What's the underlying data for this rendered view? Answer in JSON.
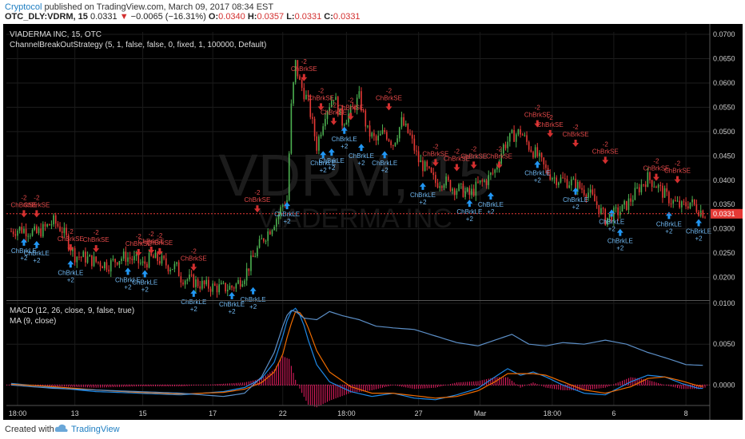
{
  "header": {
    "author": "Cryptocol",
    "published": "published on TradingView.com, March 09, 2017 08:34 EST",
    "symbol": "OTC_DLY:VDRM, 15",
    "last": "0.0331",
    "change": "−0.0065 (−16.31%)",
    "o_label": "O:",
    "o": "0.0340",
    "h_label": "H:",
    "h": "0.0357",
    "l_label": "L:",
    "l": "0.0331",
    "c_label": "C:",
    "c": "0.0331"
  },
  "footer": {
    "created": "Created with",
    "brand": "TradingView"
  },
  "colors": {
    "up": "#4caf50",
    "down": "#e53935",
    "macd": "#1e88e5",
    "signal": "#ef6c00",
    "hist": "#e91e63",
    "ma": "#5c8fc7",
    "entry": "#2196f3",
    "exit": "#d32f2f"
  },
  "chart_data": [
    {
      "type": "candlestick",
      "title": "VIADERMA INC, 15, OTC",
      "watermark": "VDRM, 15",
      "watermark_sub": "VIADERMA INC",
      "indicator": "ChannelBreakOutStrategy (5, 1, false, false, 0, fixed, 1, 100000, Default)",
      "ylim": [
        0.0155,
        0.0705
      ],
      "y_ticks": [
        "0.0700",
        "0.0650",
        "0.0600",
        "0.0550",
        "0.0500",
        "0.0450",
        "0.0400",
        "0.0350",
        "0.0300",
        "0.0250",
        "0.0200"
      ],
      "last_price": "0.0331",
      "x_ticks": [
        "18:00",
        "13",
        "15",
        "17",
        "22",
        "18:00",
        "27",
        "Mar",
        "18:00",
        "6",
        "8"
      ],
      "close_path": [
        [
          0,
          0.0295
        ],
        [
          4,
          0.03
        ],
        [
          8,
          0.0296
        ],
        [
          12,
          0.029
        ],
        [
          16,
          0.0302
        ],
        [
          20,
          0.0315
        ],
        [
          24,
          0.0298
        ],
        [
          28,
          0.0262
        ],
        [
          30,
          0.0245
        ],
        [
          34,
          0.0242
        ],
        [
          38,
          0.0235
        ],
        [
          42,
          0.023
        ],
        [
          46,
          0.0226
        ],
        [
          50,
          0.0238
        ],
        [
          54,
          0.0243
        ],
        [
          58,
          0.0236
        ],
        [
          62,
          0.0226
        ],
        [
          66,
          0.024
        ],
        [
          70,
          0.0236
        ],
        [
          74,
          0.0224
        ],
        [
          78,
          0.022
        ],
        [
          80,
          0.02
        ],
        [
          84,
          0.0195
        ],
        [
          88,
          0.0188
        ],
        [
          92,
          0.0182
        ],
        [
          96,
          0.018
        ],
        [
          100,
          0.0178
        ],
        [
          104,
          0.018
        ],
        [
          106,
          0.0185
        ],
        [
          110,
          0.0205
        ],
        [
          114,
          0.024
        ],
        [
          118,
          0.0275
        ],
        [
          122,
          0.03
        ],
        [
          126,
          0.033
        ],
        [
          128,
          0.035
        ],
        [
          130,
          0.036
        ],
        [
          132,
          0.055
        ],
        [
          134,
          0.064
        ],
        [
          136,
          0.06
        ],
        [
          140,
          0.056
        ],
        [
          144,
          0.047
        ],
        [
          148,
          0.054
        ],
        [
          152,
          0.0575
        ],
        [
          156,
          0.052
        ],
        [
          160,
          0.054
        ],
        [
          164,
          0.057
        ],
        [
          168,
          0.05
        ],
        [
          172,
          0.048
        ],
        [
          176,
          0.05
        ],
        [
          180,
          0.0475
        ],
        [
          184,
          0.052
        ],
        [
          188,
          0.049
        ],
        [
          192,
          0.044
        ],
        [
          196,
          0.042
        ],
        [
          200,
          0.0395
        ],
        [
          204,
          0.04
        ],
        [
          208,
          0.0385
        ],
        [
          212,
          0.038
        ],
        [
          216,
          0.037
        ],
        [
          220,
          0.039
        ],
        [
          224,
          0.04
        ],
        [
          228,
          0.042
        ],
        [
          232,
          0.047
        ],
        [
          236,
          0.049
        ],
        [
          240,
          0.05
        ],
        [
          244,
          0.047
        ],
        [
          248,
          0.045
        ],
        [
          252,
          0.042
        ],
        [
          256,
          0.0405
        ],
        [
          260,
          0.04
        ],
        [
          264,
          0.0395
        ],
        [
          268,
          0.0385
        ],
        [
          272,
          0.0375
        ],
        [
          276,
          0.035
        ],
        [
          280,
          0.032
        ],
        [
          284,
          0.033
        ],
        [
          288,
          0.034
        ],
        [
          292,
          0.036
        ],
        [
          296,
          0.0385
        ],
        [
          300,
          0.0405
        ],
        [
          304,
          0.039
        ],
        [
          308,
          0.037
        ],
        [
          312,
          0.0355
        ],
        [
          316,
          0.0345
        ],
        [
          320,
          0.0355
        ],
        [
          324,
          0.034
        ],
        [
          327,
          0.0331
        ]
      ],
      "n_bars": 328,
      "entries": [
        [
          6,
          0.028
        ],
        [
          12,
          0.0275
        ],
        [
          28,
          0.0235
        ],
        [
          55,
          0.022
        ],
        [
          63,
          0.0215
        ],
        [
          86,
          0.0175
        ],
        [
          104,
          0.017
        ],
        [
          114,
          0.018
        ],
        [
          130,
          0.0355
        ],
        [
          147,
          0.046
        ],
        [
          151,
          0.0465
        ],
        [
          157,
          0.051
        ],
        [
          165,
          0.0475
        ],
        [
          176,
          0.046
        ],
        [
          194,
          0.0395
        ],
        [
          216,
          0.036
        ],
        [
          226,
          0.0375
        ],
        [
          248,
          0.044
        ],
        [
          266,
          0.0385
        ],
        [
          283,
          0.034
        ],
        [
          287,
          0.03
        ],
        [
          310,
          0.0335
        ],
        [
          324,
          0.032
        ]
      ],
      "exits": [
        [
          6,
          0.034
        ],
        [
          12,
          0.034
        ],
        [
          28,
          0.027
        ],
        [
          40,
          0.0268
        ],
        [
          60,
          0.026
        ],
        [
          66,
          0.0265
        ],
        [
          70,
          0.0262
        ],
        [
          86,
          0.023
        ],
        [
          116,
          0.035
        ],
        [
          138,
          0.062
        ],
        [
          146,
          0.056
        ],
        [
          152,
          0.053
        ],
        [
          160,
          0.054
        ],
        [
          178,
          0.056
        ],
        [
          200,
          0.0445
        ],
        [
          210,
          0.0435
        ],
        [
          218,
          0.044
        ],
        [
          230,
          0.044
        ],
        [
          248,
          0.0525
        ],
        [
          254,
          0.0505
        ],
        [
          266,
          0.0485
        ],
        [
          280,
          0.045
        ],
        [
          304,
          0.0415
        ],
        [
          314,
          0.041
        ]
      ],
      "entry_label": "ChBrkLE",
      "exit_label": "ChBrkSE",
      "entry_qty": "+2",
      "exit_qty": "-2"
    },
    {
      "type": "line",
      "title": "MACD (12, 26, close, 9, false, true)",
      "ma_title": "MA (9, close)",
      "ylim": [
        -0.0025,
        0.0102
      ],
      "y_ticks": [
        "0.0100",
        "0.0050",
        "0.0000"
      ],
      "series": [
        {
          "name": "MACD",
          "points": [
            [
              0,
              0.0002
            ],
            [
              20,
              -0.0003
            ],
            [
              40,
              -0.0008
            ],
            [
              60,
              -0.001
            ],
            [
              80,
              -0.0012
            ],
            [
              100,
              -0.0008
            ],
            [
              110,
              -0.0003
            ],
            [
              118,
              0.0008
            ],
            [
              124,
              0.0028
            ],
            [
              128,
              0.006
            ],
            [
              131,
              0.0088
            ],
            [
              134,
              0.0094
            ],
            [
              137,
              0.0082
            ],
            [
              140,
              0.0055
            ],
            [
              144,
              0.0025
            ],
            [
              150,
              0.0004
            ],
            [
              160,
              -0.0008
            ],
            [
              170,
              -0.0014
            ],
            [
              180,
              -0.001
            ],
            [
              190,
              -0.0016
            ],
            [
              200,
              -0.0018
            ],
            [
              210,
              -0.0012
            ],
            [
              220,
              -0.0004
            ],
            [
              228,
              0.001
            ],
            [
              234,
              0.002
            ],
            [
              240,
              0.0012
            ],
            [
              246,
              0.0016
            ],
            [
              252,
              0.001
            ],
            [
              260,
              0.0
            ],
            [
              270,
              -0.001
            ],
            [
              280,
              -0.0012
            ],
            [
              292,
              0.0004
            ],
            [
              300,
              0.0012
            ],
            [
              308,
              0.001
            ],
            [
              316,
              0.0002
            ],
            [
              324,
              -0.0004
            ],
            [
              327,
              -0.0004
            ]
          ]
        },
        {
          "name": "Signal",
          "points": [
            [
              0,
              0.0001
            ],
            [
              20,
              -0.0002
            ],
            [
              40,
              -0.0006
            ],
            [
              60,
              -0.0009
            ],
            [
              80,
              -0.0011
            ],
            [
              100,
              -0.0009
            ],
            [
              110,
              -0.0005
            ],
            [
              118,
              0.0003
            ],
            [
              124,
              0.0016
            ],
            [
              128,
              0.0038
            ],
            [
              131,
              0.0068
            ],
            [
              134,
              0.009
            ],
            [
              137,
              0.0088
            ],
            [
              140,
              0.007
            ],
            [
              144,
              0.0042
            ],
            [
              150,
              0.0016
            ],
            [
              160,
              -0.0002
            ],
            [
              170,
              -0.001
            ],
            [
              180,
              -0.001
            ],
            [
              190,
              -0.0013
            ],
            [
              200,
              -0.0016
            ],
            [
              210,
              -0.0014
            ],
            [
              220,
              -0.0007
            ],
            [
              228,
              0.0004
            ],
            [
              234,
              0.0014
            ],
            [
              240,
              0.0014
            ],
            [
              246,
              0.0014
            ],
            [
              252,
              0.0012
            ],
            [
              260,
              0.0004
            ],
            [
              270,
              -0.0006
            ],
            [
              280,
              -0.001
            ],
            [
              292,
              -0.0002
            ],
            [
              300,
              0.0008
            ],
            [
              308,
              0.001
            ],
            [
              316,
              0.0005
            ],
            [
              324,
              -0.0001
            ],
            [
              327,
              -0.0002
            ]
          ]
        },
        {
          "name": "MA",
          "points": [
            [
              0,
              0.0
            ],
            [
              20,
              -0.0004
            ],
            [
              40,
              -0.0006
            ],
            [
              60,
              -0.0008
            ],
            [
              80,
              -0.001
            ],
            [
              100,
              -0.0014
            ],
            [
              110,
              -0.001
            ],
            [
              118,
              0.001
            ],
            [
              124,
              0.004
            ],
            [
              128,
              0.0072
            ],
            [
              131,
              0.0092
            ],
            [
              134,
              0.009
            ],
            [
              138,
              0.0082
            ],
            [
              144,
              0.008
            ],
            [
              150,
              0.009
            ],
            [
              156,
              0.0085
            ],
            [
              164,
              0.008
            ],
            [
              172,
              0.0072
            ],
            [
              180,
              0.007
            ],
            [
              190,
              0.0068
            ],
            [
              200,
              0.006
            ],
            [
              210,
              0.0052
            ],
            [
              220,
              0.0048
            ],
            [
              228,
              0.0055
            ],
            [
              236,
              0.0062
            ],
            [
              244,
              0.005
            ],
            [
              252,
              0.0048
            ],
            [
              260,
              0.0052
            ],
            [
              270,
              0.005
            ],
            [
              280,
              0.0055
            ],
            [
              290,
              0.005
            ],
            [
              300,
              0.004
            ],
            [
              310,
              0.0032
            ],
            [
              318,
              0.0025
            ],
            [
              327,
              0.0024
            ]
          ]
        }
      ]
    }
  ]
}
